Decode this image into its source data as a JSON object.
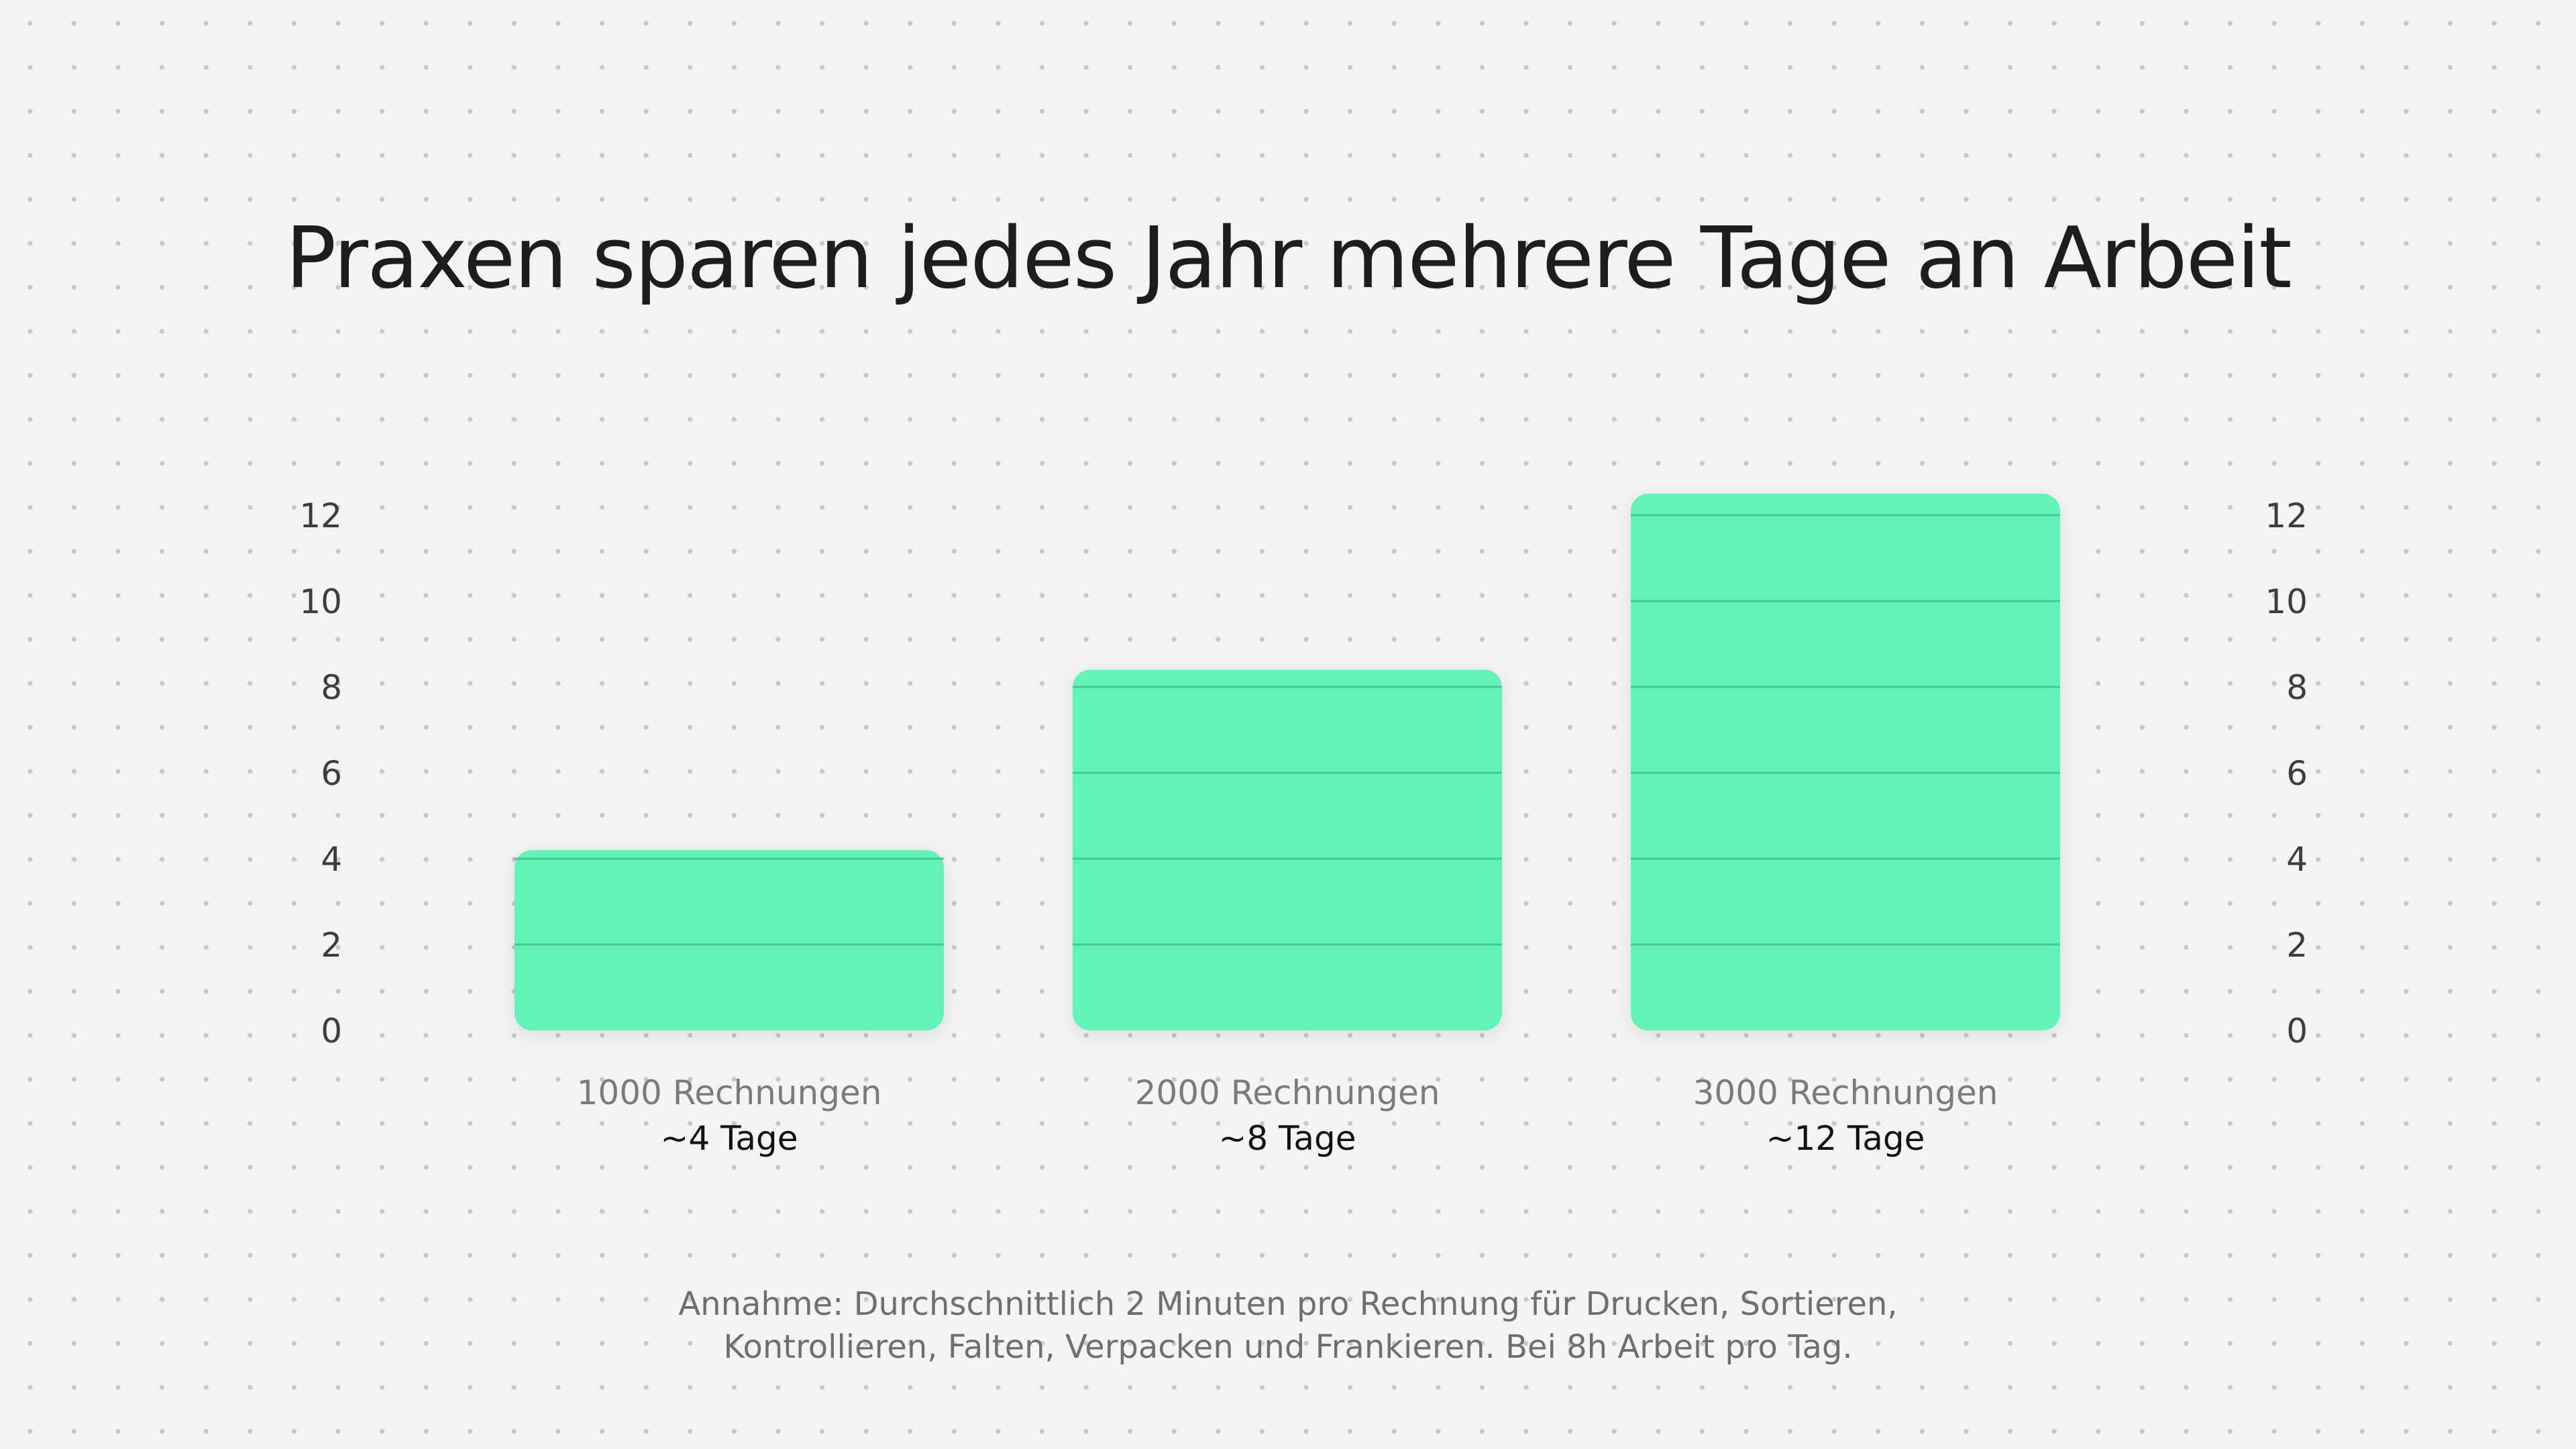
{
  "colors": {
    "bar": "#64f2b8",
    "bar_line": "#4cc794",
    "background": "#f4f4f4"
  },
  "chart_data": {
    "type": "bar",
    "title": "Praxen sparen jedes Jahr mehrere Tage an Arbeit",
    "categories": [
      "1000 Rechnungen",
      "2000 Rechnungen",
      "3000 Rechnungen"
    ],
    "values": [
      4.2,
      8.4,
      12.5
    ],
    "value_labels": [
      "~4 Tage",
      "~8 Tage",
      "~12 Tage"
    ],
    "y_ticks": [
      0,
      2,
      4,
      6,
      8,
      10,
      12
    ],
    "ylim": [
      0,
      12.5
    ],
    "ylabel": "",
    "xlabel": "",
    "grid": true,
    "legend": "none",
    "axis_labels_on": "both-sides"
  },
  "footnote": {
    "line1": "Annahme: Durchschnittlich 2 Minuten pro Rechnung für Drucken, Sortieren,",
    "line2": "Kontrollieren, Falten, Verpacken und Frankieren. Bei 8h Arbeit pro Tag."
  }
}
